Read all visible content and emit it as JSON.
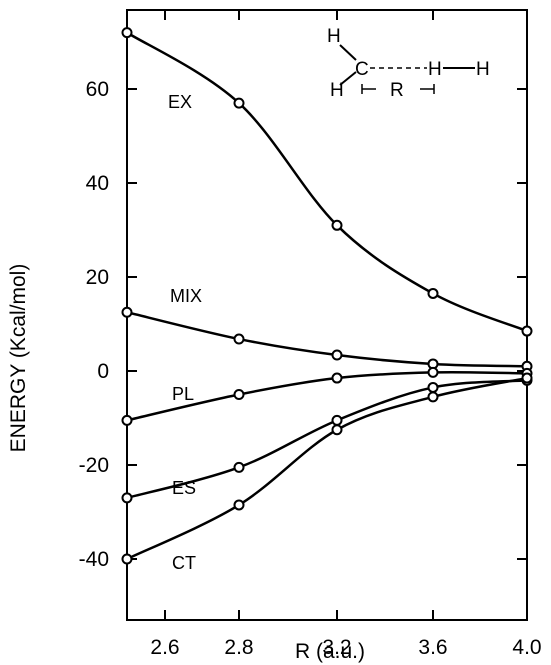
{
  "chart_data": {
    "type": "line",
    "title": "",
    "xlabel": "R (a.u.)",
    "ylabel": "ENERGY (Kcal/mol)",
    "xlim": [
      2.5,
      4.0
    ],
    "ylim": [
      -40,
      75
    ],
    "x_ticks": [
      2.6,
      2.8,
      3.2,
      3.6,
      4.0
    ],
    "x_tick_labels": [
      "2.6",
      "2.8",
      "3.2",
      "3.6",
      "4.0"
    ],
    "y_ticks": [
      -40,
      -20,
      0,
      20,
      40,
      60
    ],
    "y_tick_labels": [
      "-40",
      "-20",
      "0",
      "20",
      "40",
      "60"
    ],
    "x": [
      2.5,
      2.8,
      3.2,
      3.6,
      4.0
    ],
    "series": [
      {
        "name": "EX",
        "values": [
          72,
          57,
          31,
          16.5,
          8.5
        ]
      },
      {
        "name": "MIX",
        "values": [
          12.5,
          6.8,
          3.4,
          1.5,
          1.0
        ]
      },
      {
        "name": "PL",
        "values": [
          -10.5,
          -5.0,
          -1.5,
          -0.3,
          -0.5
        ]
      },
      {
        "name": "ES",
        "values": [
          -27,
          -20.5,
          -10.5,
          -3.5,
          -2.0
        ]
      },
      {
        "name": "CT",
        "values": [
          -40,
          -28.5,
          -12.5,
          -5.5,
          -1.5
        ]
      }
    ],
    "grid": false,
    "legend": "none",
    "inset": {
      "atoms": [
        "H",
        "C",
        "H",
        "H",
        "H"
      ],
      "distance_label": "R"
    }
  }
}
